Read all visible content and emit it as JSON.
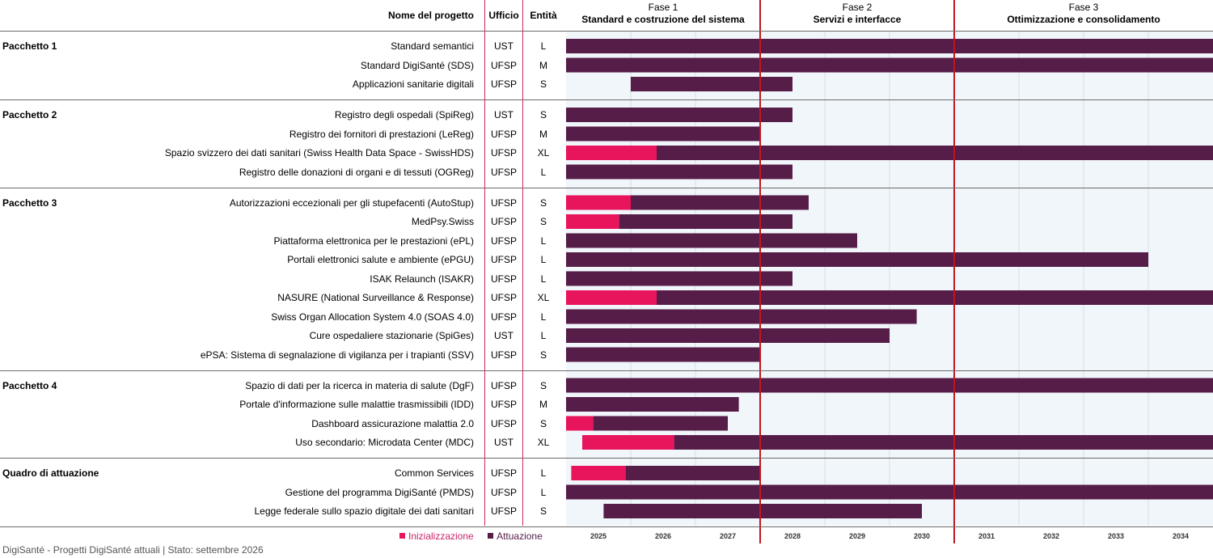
{
  "header": {
    "name_col": "Nome del progetto",
    "office_col": "Ufficio",
    "entity_col": "Entità"
  },
  "phases": [
    {
      "number": "Fase 1",
      "title": "Standard e costruzione del sistema"
    },
    {
      "number": "Fase 2",
      "title": "Servizi e interfacce"
    },
    {
      "number": "Fase 3",
      "title": "Ottimizzazione e consolidamento"
    }
  ],
  "legend": {
    "init": "Inizializzazione",
    "impl": "Attuazione"
  },
  "footer": "DigiSanté - Progetti DigiSanté attuali | Stato: settembre 2026",
  "colors": {
    "init": "#e8145c",
    "impl": "#561d49",
    "background": "#f1f6fb",
    "grid": "#d9dde2",
    "phase_line": "#c0161e",
    "column_divider": "#c8246b"
  },
  "chart_data": {
    "type": "gantt",
    "x_axis": {
      "unit": "year",
      "start": 2025,
      "end": 2035,
      "ticks": [
        "2025",
        "2026",
        "2027",
        "2028",
        "2029",
        "2030",
        "2031",
        "2032",
        "2033",
        "2034"
      ]
    },
    "phase_boundaries": [
      2028,
      2031
    ],
    "groups": [
      {
        "name": "Pacchetto 1",
        "projects": [
          {
            "name": "Standard semantici",
            "office": "UST",
            "entity": "L",
            "init": null,
            "impl": [
              2025.0,
              2035.0
            ]
          },
          {
            "name": "Standard DigiSanté (SDS)",
            "office": "UFSP",
            "entity": "M",
            "init": null,
            "impl": [
              2025.0,
              2035.0
            ]
          },
          {
            "name": "Applicazioni sanitarie digitali",
            "office": "UFSP",
            "entity": "S",
            "init": null,
            "impl": [
              2026.0,
              2028.5
            ]
          }
        ]
      },
      {
        "name": "Pacchetto 2",
        "projects": [
          {
            "name": "Registro degli ospedali (SpiReg)",
            "office": "UST",
            "entity": "S",
            "init": null,
            "impl": [
              2025.0,
              2028.5
            ]
          },
          {
            "name": "Registro dei fornitori di prestazioni (LeReg)",
            "office": "UFSP",
            "entity": "M",
            "init": null,
            "impl": [
              2025.0,
              2028.0
            ]
          },
          {
            "name": "Spazio svizzero dei dati sanitari (Swiss Health Data Space - SwissHDS)",
            "office": "UFSP",
            "entity": "XL",
            "init": [
              2025.0,
              2026.4
            ],
            "impl": [
              2026.4,
              2035.0
            ]
          },
          {
            "name": "Registro delle donazioni di organi e di tessuti (OGReg)",
            "office": "UFSP",
            "entity": "L",
            "init": null,
            "impl": [
              2025.0,
              2028.5
            ]
          }
        ]
      },
      {
        "name": "Pacchetto 3",
        "projects": [
          {
            "name": "Autorizzazioni eccezionali per gli stupefacenti (AutoStup)",
            "office": "UFSP",
            "entity": "S",
            "init": [
              2025.0,
              2026.0
            ],
            "impl": [
              2026.0,
              2028.75
            ]
          },
          {
            "name": "MedPsy.Swiss",
            "office": "UFSP",
            "entity": "S",
            "init": [
              2025.0,
              2025.82
            ],
            "impl": [
              2025.82,
              2028.5
            ]
          },
          {
            "name": "Piattaforma elettronica per le prestazioni (ePL)",
            "office": "UFSP",
            "entity": "L",
            "init": null,
            "impl": [
              2025.0,
              2029.5
            ]
          },
          {
            "name": "Portali elettronici salute e ambiente (ePGU)",
            "office": "UFSP",
            "entity": "L",
            "init": null,
            "impl": [
              2025.0,
              2034.0
            ]
          },
          {
            "name": "ISAK Relaunch (ISAKR)",
            "office": "UFSP",
            "entity": "L",
            "init": null,
            "impl": [
              2025.0,
              2028.5
            ]
          },
          {
            "name": "NASURE (National Surveillance & Response)",
            "office": "UFSP",
            "entity": "XL",
            "init": [
              2025.0,
              2026.4
            ],
            "impl": [
              2026.4,
              2035.0
            ]
          },
          {
            "name": "Swiss Organ Allocation System 4.0 (SOAS 4.0)",
            "office": "UFSP",
            "entity": "L",
            "init": null,
            "impl": [
              2025.0,
              2030.42
            ]
          },
          {
            "name": "Cure ospedaliere stazionarie (SpiGes)",
            "office": "UST",
            "entity": "L",
            "init": null,
            "impl": [
              2025.0,
              2030.0
            ]
          },
          {
            "name": "ePSA: Sistema di segnalazione di vigilanza per i trapianti (SSV)",
            "office": "UFSP",
            "entity": "S",
            "init": null,
            "impl": [
              2025.0,
              2028.0
            ]
          }
        ]
      },
      {
        "name": "Pacchetto 4",
        "projects": [
          {
            "name": "Spazio di dati per la ricerca in materia di salute (DgF)",
            "office": "UFSP",
            "entity": "S",
            "init": null,
            "impl": [
              2025.0,
              2035.0
            ]
          },
          {
            "name": "Portale d'informazione sulle malattie trasmissibili (IDD)",
            "office": "UFSP",
            "entity": "M",
            "init": null,
            "impl": [
              2025.0,
              2027.67
            ]
          },
          {
            "name": "Dashboard assicurazione malattia 2.0",
            "office": "UFSP",
            "entity": "S",
            "init": [
              2025.0,
              2025.42
            ],
            "impl": [
              2025.42,
              2027.5
            ]
          },
          {
            "name": "Uso secondario: Microdata Center (MDC)",
            "office": "UST",
            "entity": "XL",
            "init": [
              2025.25,
              2026.67
            ],
            "impl": [
              2026.67,
              2035.0
            ]
          }
        ]
      },
      {
        "name": "Quadro di attuazione",
        "projects": [
          {
            "name": "Common Services",
            "office": "UFSP",
            "entity": "L",
            "init": [
              2025.08,
              2025.92
            ],
            "impl": [
              2025.92,
              2028.0
            ]
          },
          {
            "name": "Gestione del programma DigiSanté (PMDS)",
            "office": "UFSP",
            "entity": "L",
            "init": null,
            "impl": [
              2025.0,
              2035.0
            ]
          },
          {
            "name": "Legge federale sullo spazio digitale dei dati sanitari",
            "office": "UFSP",
            "entity": "S",
            "init": null,
            "impl": [
              2025.58,
              2030.5
            ]
          }
        ]
      }
    ]
  }
}
